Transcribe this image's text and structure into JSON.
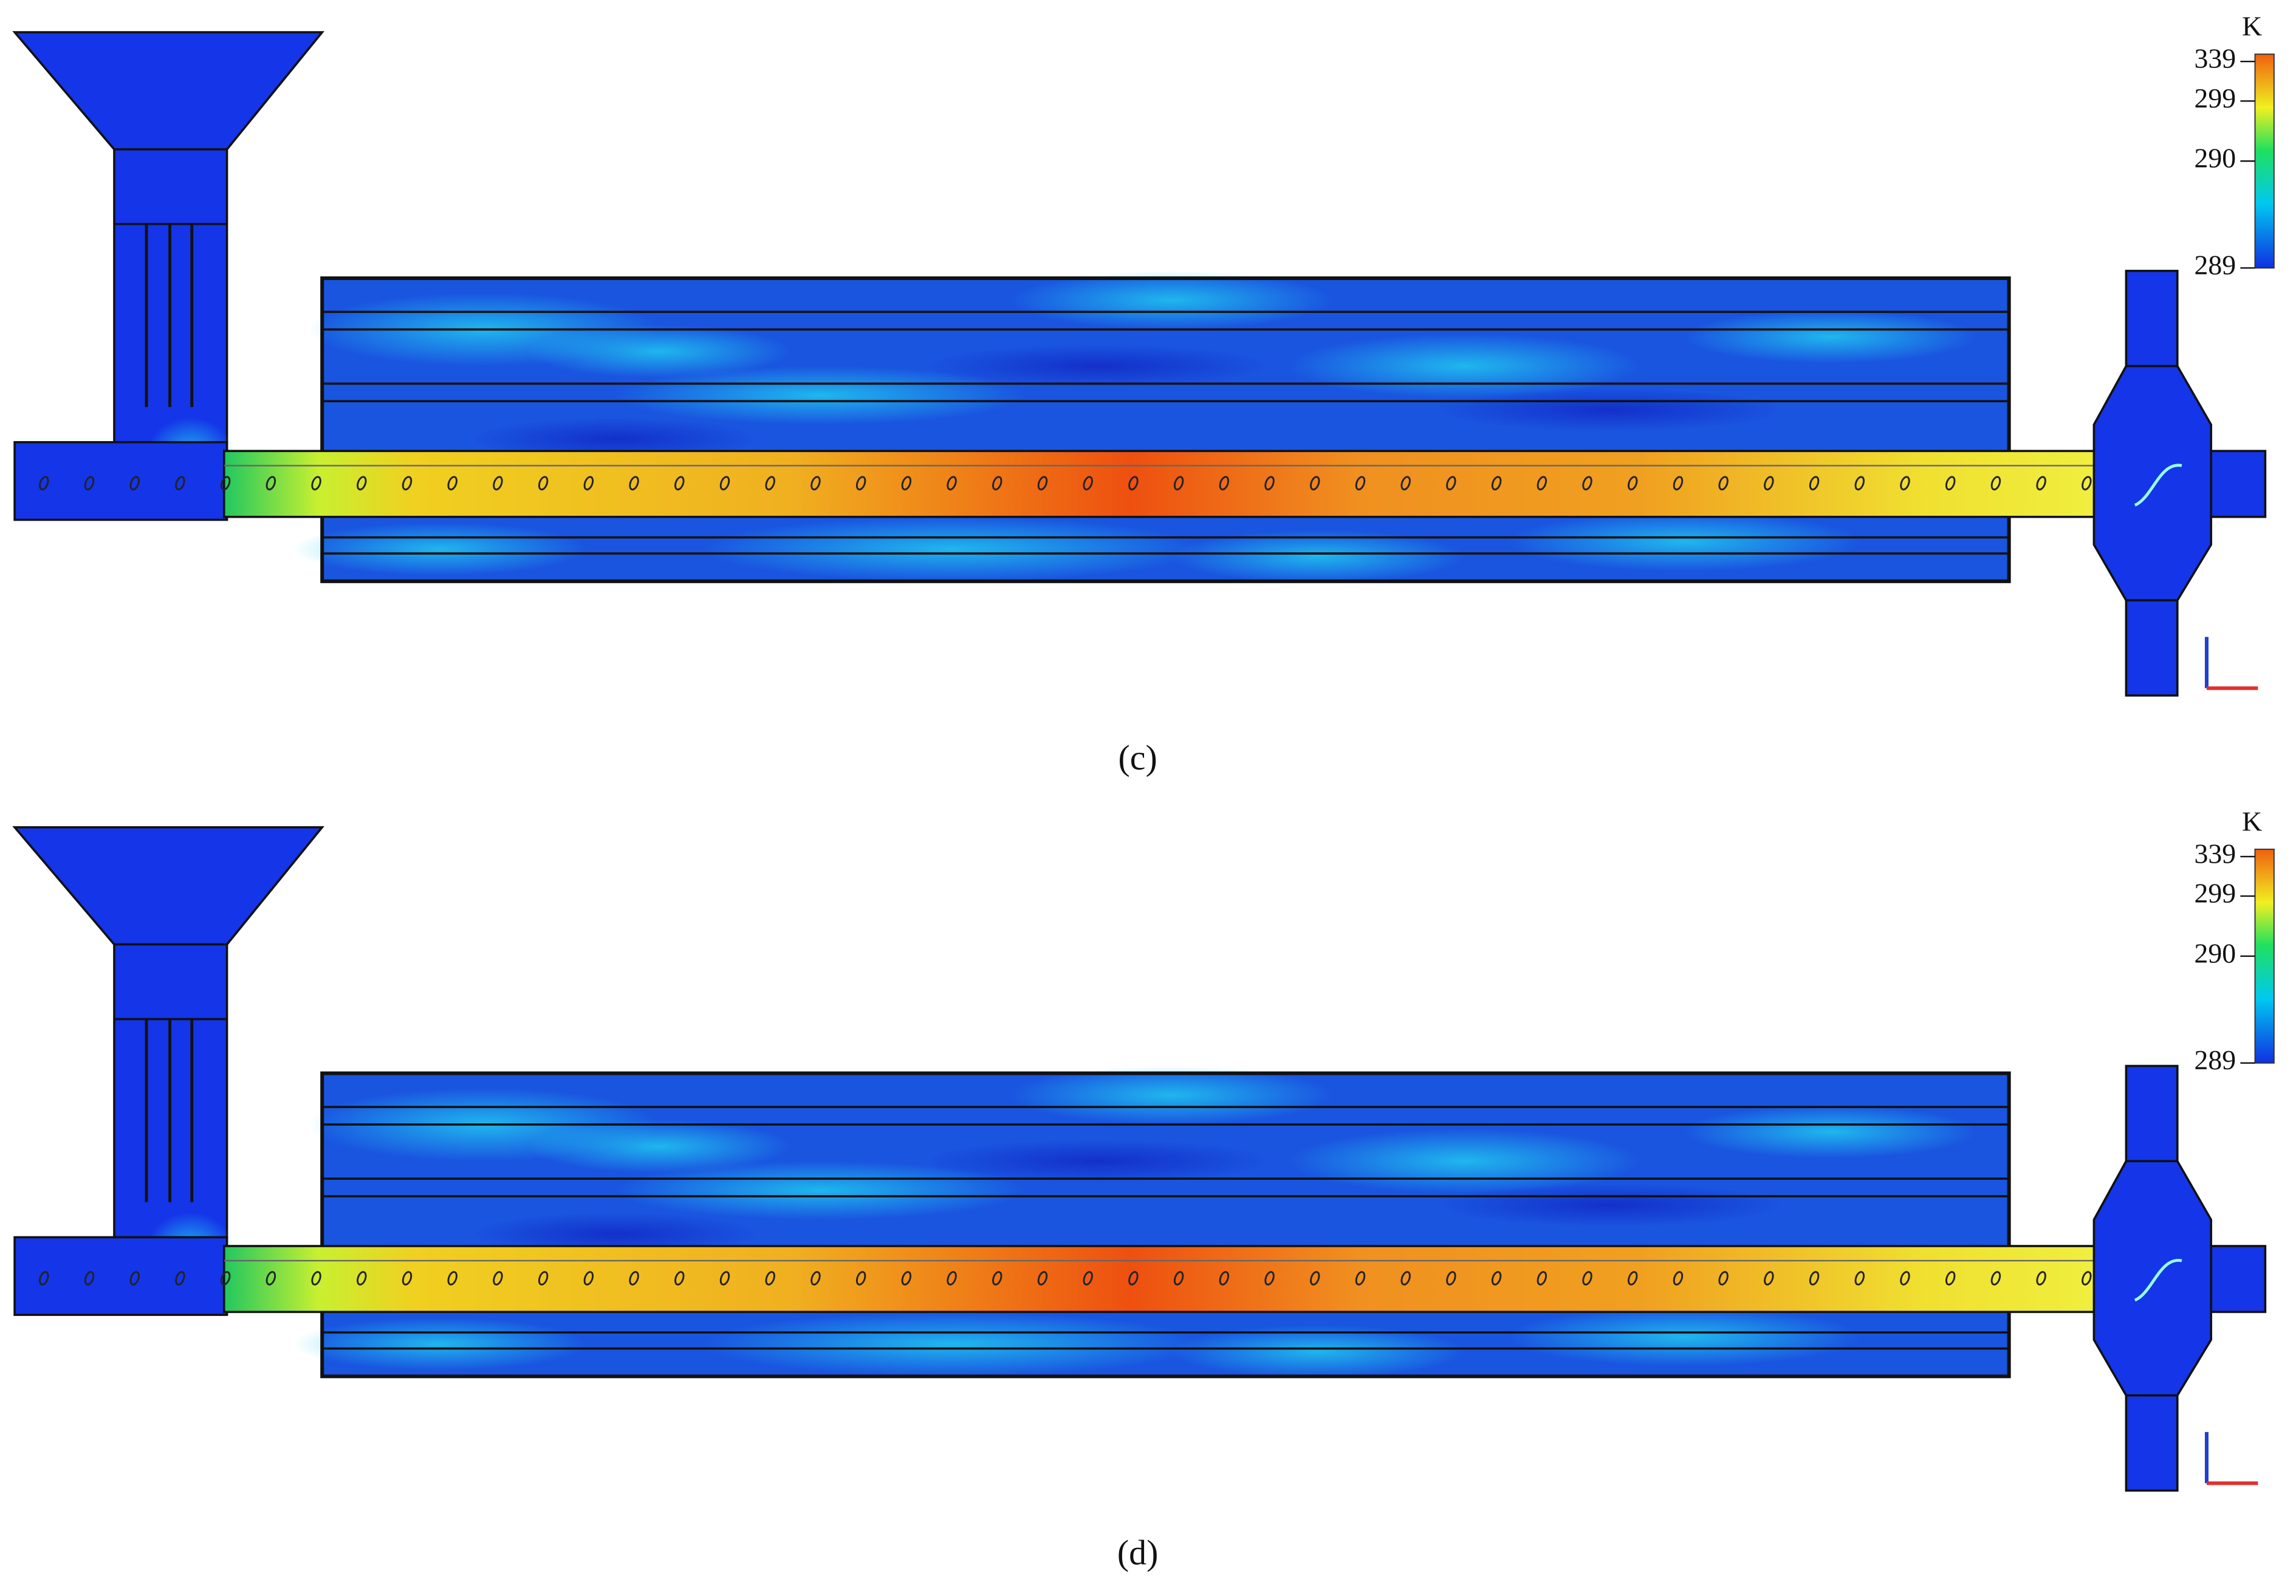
{
  "panels": [
    {
      "label": "(c)",
      "colorbar": {
        "unit": "K",
        "ticks": [
          339,
          299,
          290,
          289
        ]
      }
    },
    {
      "label": "(d)",
      "colorbar": {
        "unit": "K",
        "ticks": [
          339,
          299,
          290,
          289
        ]
      }
    }
  ]
}
